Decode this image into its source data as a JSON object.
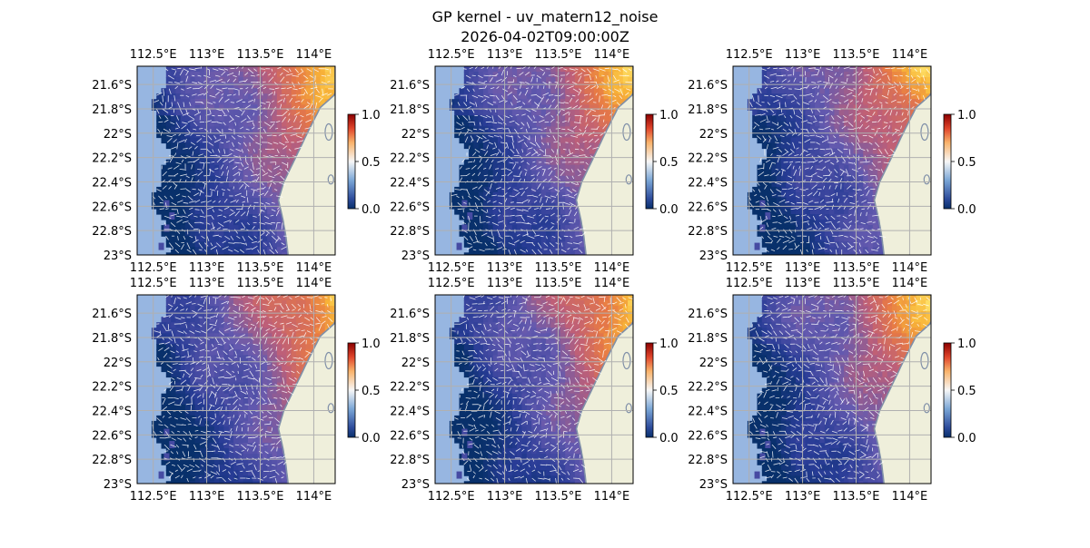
{
  "figure": {
    "title": "GP kernel - uv_matern12_noise",
    "subtitle": "2026-04-02T09:00:00Z"
  },
  "colors": {
    "ocean_bg": "#97b6e1",
    "land": "#efefdb",
    "coastline": "#7f8fa8",
    "gridline": "#b0b0b0",
    "arrows": "#ffffff",
    "cmap_low": "#08306b",
    "cmap_mid": "#f7f7f7",
    "cmap_high": "#8b0000"
  },
  "chart_data": {
    "type": "heatmap",
    "layout": "2x3 grid of map panels",
    "xlim": [
      112.35,
      114.2
    ],
    "ylim": [
      -23.0,
      -21.45
    ],
    "x_ticks": [
      112.5,
      113.0,
      113.5,
      114.0
    ],
    "x_tick_labels": [
      "112.5°E",
      "113°E",
      "113.5°E",
      "114°E"
    ],
    "y_ticks": [
      -21.6,
      -21.8,
      -22.0,
      -22.2,
      -22.4,
      -22.6,
      -22.8,
      -23.0
    ],
    "y_tick_labels": [
      "21.6°S",
      "21.8°S",
      "22°S",
      "22.2°S",
      "22.4°S",
      "22.6°S",
      "22.8°S",
      "23°S"
    ],
    "grid": true,
    "colorbar": {
      "min": 0.0,
      "max": 1.0,
      "ticks": [
        0.0,
        0.5,
        1.0
      ],
      "tick_labels": [
        "0.0",
        "0.5",
        "1.0"
      ],
      "colormap": "RdYlBu_r-like"
    },
    "overlay": "white quiver arrows (uv vector field)",
    "panels": [
      {
        "row": 0,
        "col": 0,
        "seed": 11
      },
      {
        "row": 0,
        "col": 1,
        "seed": 23
      },
      {
        "row": 0,
        "col": 2,
        "seed": 37
      },
      {
        "row": 1,
        "col": 0,
        "seed": 41
      },
      {
        "row": 1,
        "col": 1,
        "seed": 53
      },
      {
        "row": 1,
        "col": 2,
        "seed": 67
      }
    ]
  }
}
